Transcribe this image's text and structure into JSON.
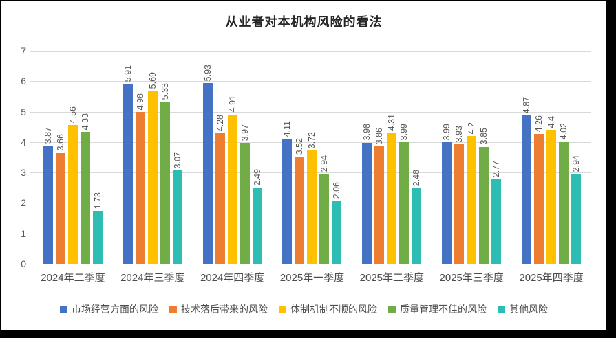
{
  "chart_data": {
    "type": "bar",
    "title": "从业者对本机构风险的看法",
    "categories": [
      "2024年二季度",
      "2024年三季度",
      "2024年四季度",
      "2025年一季度",
      "2025年二季度",
      "2025年三季度",
      "2025年四季度"
    ],
    "series": [
      {
        "name": "市场经营方面的风险",
        "color": "#4472C4",
        "values": [
          3.87,
          5.91,
          5.93,
          4.11,
          3.98,
          3.99,
          4.87
        ]
      },
      {
        "name": "技术落后带来的风险",
        "color": "#ED7D31",
        "values": [
          3.66,
          4.98,
          4.28,
          3.52,
          3.86,
          3.93,
          4.26
        ]
      },
      {
        "name": "体制机制不顺的风险",
        "color": "#FFC000",
        "values": [
          4.56,
          5.69,
          4.91,
          3.72,
          4.31,
          4.2,
          4.4
        ]
      },
      {
        "name": "质量管理不佳的风险",
        "color": "#70AD47",
        "values": [
          4.33,
          5.33,
          3.97,
          2.94,
          3.99,
          3.85,
          4.02
        ]
      },
      {
        "name": "其他风险",
        "color": "#2EBDB3",
        "values": [
          1.73,
          3.07,
          2.49,
          2.06,
          2.48,
          2.77,
          2.94
        ]
      }
    ],
    "ylim": [
      0,
      7
    ],
    "y_ticks": [
      0,
      1,
      2,
      3,
      4,
      5,
      6,
      7
    ],
    "xlabel": "",
    "ylabel": "",
    "grid": true,
    "legend_position": "bottom",
    "data_labels": "rotated-vertical"
  }
}
